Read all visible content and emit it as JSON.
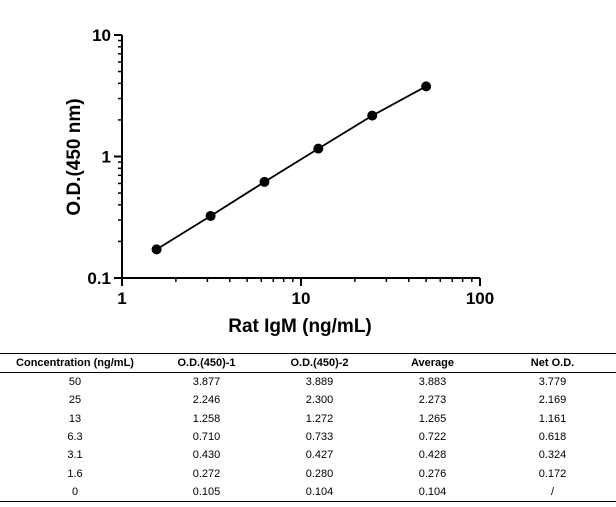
{
  "chart_data": {
    "type": "scatter",
    "xlabel": "Rat IgM (ng/mL)",
    "ylabel": "O.D.(450 nm)",
    "x_scale": "log",
    "y_scale": "log",
    "xlim": [
      1,
      100
    ],
    "ylim": [
      0.1,
      10
    ],
    "x_ticks": [
      "1",
      "10",
      "100"
    ],
    "y_ticks": [
      "0.1",
      "1",
      "10"
    ],
    "grid": false,
    "series": [
      {
        "x": [
          1.56,
          3.125,
          6.25,
          12.5,
          25,
          50
        ],
        "y": [
          0.172,
          0.324,
          0.618,
          1.161,
          2.169,
          3.779
        ],
        "line": true
      }
    ]
  },
  "table": {
    "headers": [
      "Concentration (ng/mL)",
      "O.D.(450)-1",
      "O.D.(450)-2",
      "Average",
      "Net O.D."
    ],
    "rows": [
      [
        "50",
        "3.877",
        "3.889",
        "3.883",
        "3.779"
      ],
      [
        "25",
        "2.246",
        "2.300",
        "2.273",
        "2.169"
      ],
      [
        "13",
        "1.258",
        "1.272",
        "1.265",
        "1.161"
      ],
      [
        "6.3",
        "0.710",
        "0.733",
        "0.722",
        "0.618"
      ],
      [
        "3.1",
        "0.430",
        "0.427",
        "0.428",
        "0.324"
      ],
      [
        "1.6",
        "0.272",
        "0.280",
        "0.276",
        "0.172"
      ],
      [
        "0",
        "0.105",
        "0.104",
        "0.104",
        "/"
      ]
    ]
  }
}
